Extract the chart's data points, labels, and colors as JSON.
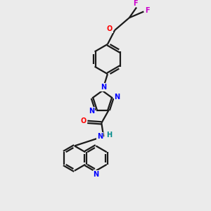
{
  "bg_color": "#ebebeb",
  "bond_color": "#1a1a1a",
  "N_color": "#0000ff",
  "O_color": "#ff0000",
  "F_color": "#cc00cc",
  "H_color": "#008b8b",
  "line_width": 1.6,
  "xlim": [
    0,
    10
  ],
  "ylim": [
    0,
    10
  ]
}
